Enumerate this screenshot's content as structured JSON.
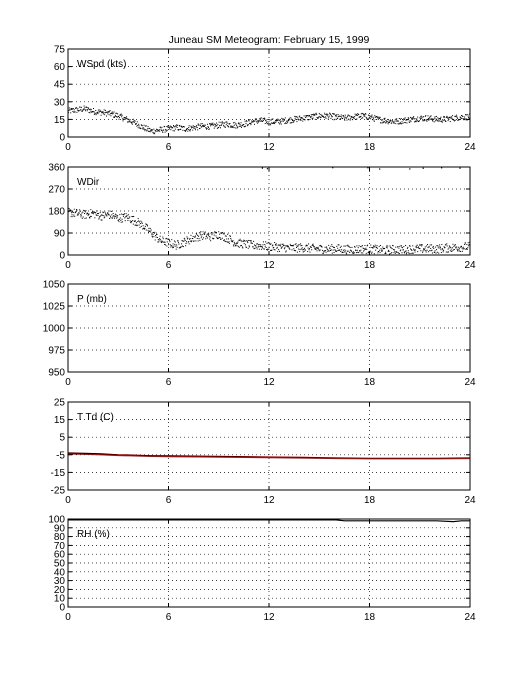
{
  "title": "Juneau SM Meteogram:   February 15, 1999",
  "chart_data": [
    {
      "type": "scatter",
      "label": "WSpd (kts)",
      "xlim": [
        0,
        24
      ],
      "xticks": [
        0,
        6,
        12,
        18,
        24
      ],
      "ylim": [
        0,
        75
      ],
      "yticks": [
        0,
        15,
        30,
        45,
        60,
        75
      ],
      "grid": true,
      "series": [
        {
          "color": "#000000",
          "x": [
            0,
            0.5,
            1,
            1.5,
            2,
            2.5,
            3,
            3.5,
            4,
            4.5,
            5,
            5.5,
            6,
            6.5,
            7,
            7.5,
            8,
            8.5,
            9,
            9.5,
            10,
            10.5,
            11,
            11.5,
            12,
            12.5,
            13,
            13.5,
            14,
            14.5,
            15,
            15.5,
            16,
            16.5,
            17,
            17.5,
            18,
            18.5,
            19,
            19.5,
            20,
            20.5,
            21,
            21.5,
            22,
            22.5,
            23,
            23.5,
            24
          ],
          "y": [
            22,
            23,
            24,
            22,
            21,
            20,
            18,
            15,
            12,
            8,
            5,
            6,
            7,
            8,
            7,
            8,
            9,
            9,
            10,
            11,
            10,
            11,
            13,
            14,
            13,
            13,
            14,
            15,
            16,
            17,
            18,
            18,
            17,
            16,
            17,
            18,
            17,
            15,
            14,
            13,
            14,
            15,
            16,
            16,
            15,
            15,
            16,
            17,
            17
          ]
        }
      ]
    },
    {
      "type": "scatter",
      "label": "WDir",
      "xlim": [
        0,
        24
      ],
      "xticks": [
        0,
        6,
        12,
        18,
        24
      ],
      "ylim": [
        0,
        360
      ],
      "yticks": [
        0,
        90,
        180,
        270,
        360
      ],
      "grid": true,
      "series": [
        {
          "color": "#000000",
          "x": [
            0,
            0.5,
            1,
            1.5,
            2,
            2.5,
            3,
            3.5,
            4,
            4.5,
            5,
            5.5,
            6,
            6.5,
            7,
            7.5,
            8,
            8.5,
            9,
            9.5,
            10,
            10.5,
            11,
            11.5,
            12,
            12.5,
            13,
            13.5,
            14,
            14.5,
            15,
            15.5,
            16,
            16.5,
            17,
            17.5,
            18,
            18.5,
            19,
            19.5,
            20,
            20.5,
            21,
            21.5,
            22,
            22.5,
            23,
            23.5,
            24
          ],
          "y": [
            175,
            170,
            165,
            170,
            160,
            165,
            150,
            155,
            140,
            120,
            90,
            60,
            50,
            40,
            55,
            70,
            80,
            75,
            85,
            70,
            50,
            45,
            40,
            38,
            35,
            32,
            30,
            28,
            30,
            27,
            25,
            24,
            26,
            23,
            22,
            25,
            24,
            22,
            20,
            23,
            22,
            24,
            25,
            26,
            24,
            28,
            30,
            32,
            35
          ]
        }
      ]
    },
    {
      "type": "line",
      "label": "P (mb)",
      "xlim": [
        0,
        24
      ],
      "xticks": [
        0,
        6,
        12,
        18,
        24
      ],
      "ylim": [
        950,
        1050
      ],
      "yticks": [
        950,
        975,
        1000,
        1025,
        1050
      ],
      "grid": true,
      "series": []
    },
    {
      "type": "line",
      "label": "T Td (C)",
      "xlim": [
        0,
        24
      ],
      "xticks": [
        0,
        6,
        12,
        18,
        24
      ],
      "ylim": [
        -25,
        25
      ],
      "yticks": [
        -25,
        -15,
        -5,
        5,
        15,
        25
      ],
      "grid": true,
      "series": [
        {
          "color": "#000000",
          "x": [
            0,
            1,
            2,
            3,
            4,
            5,
            6,
            8,
            10,
            12,
            14,
            16,
            18,
            20,
            22,
            24
          ],
          "y": [
            -4,
            -4.2,
            -4.5,
            -5,
            -5.2,
            -5.5,
            -5.6,
            -5.8,
            -6,
            -6.3,
            -6.5,
            -6.8,
            -7,
            -7,
            -7,
            -6.8
          ]
        },
        {
          "color": "#c00000",
          "x": [
            0,
            1,
            2,
            3,
            4,
            5,
            6,
            8,
            10,
            12,
            14,
            16,
            18,
            20,
            22,
            24
          ],
          "y": [
            -4.5,
            -4.7,
            -5,
            -5.4,
            -5.6,
            -5.9,
            -6,
            -6.2,
            -6.4,
            -6.6,
            -6.8,
            -7.1,
            -7.3,
            -7.3,
            -7.3,
            -7.1
          ]
        }
      ]
    },
    {
      "type": "line",
      "label": "RH (%)",
      "xlim": [
        0,
        24
      ],
      "xticks": [
        0,
        6,
        12,
        18,
        24
      ],
      "ylim": [
        0,
        100
      ],
      "yticks": [
        0,
        10,
        20,
        30,
        40,
        50,
        60,
        70,
        80,
        90,
        100
      ],
      "grid": true,
      "series": [
        {
          "color": "#000000",
          "x": [
            0,
            2,
            4,
            6,
            8,
            10,
            12,
            14,
            16,
            16.5,
            18,
            20,
            22,
            23,
            23.5,
            24
          ],
          "y": [
            99,
            99,
            99,
            99,
            99,
            99,
            99,
            99,
            99,
            98,
            98,
            98,
            98,
            97,
            98,
            98
          ]
        }
      ]
    }
  ]
}
